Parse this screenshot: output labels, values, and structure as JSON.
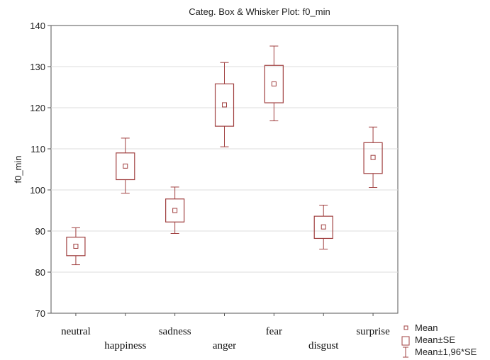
{
  "chart_data": {
    "type": "box",
    "title": "Categ. Box & Whisker Plot: f0_min",
    "xlabel": "",
    "ylabel": "f0_min",
    "ylim": [
      70,
      140
    ],
    "yticks": [
      70,
      80,
      90,
      100,
      110,
      120,
      130,
      140
    ],
    "grid": true,
    "legend_position": "bottom-right",
    "color": "#a04040",
    "categories": [
      "neutral",
      "happiness",
      "sadness",
      "anger",
      "fear",
      "disgust",
      "surprise"
    ],
    "mean": [
      86.3,
      105.8,
      95.0,
      120.7,
      125.8,
      91.0,
      107.9
    ],
    "se_low": [
      84.0,
      102.5,
      92.2,
      115.5,
      121.2,
      88.2,
      104.0
    ],
    "se_high": [
      88.5,
      109.0,
      97.8,
      125.8,
      130.3,
      93.6,
      111.5
    ],
    "ci_low": [
      81.8,
      99.2,
      89.4,
      110.5,
      116.8,
      85.6,
      100.6
    ],
    "ci_high": [
      90.8,
      112.6,
      100.7,
      131.0,
      135.0,
      96.3,
      115.3
    ],
    "legend": [
      "Mean",
      "Mean±SE",
      "Mean±1,96*SE"
    ]
  }
}
